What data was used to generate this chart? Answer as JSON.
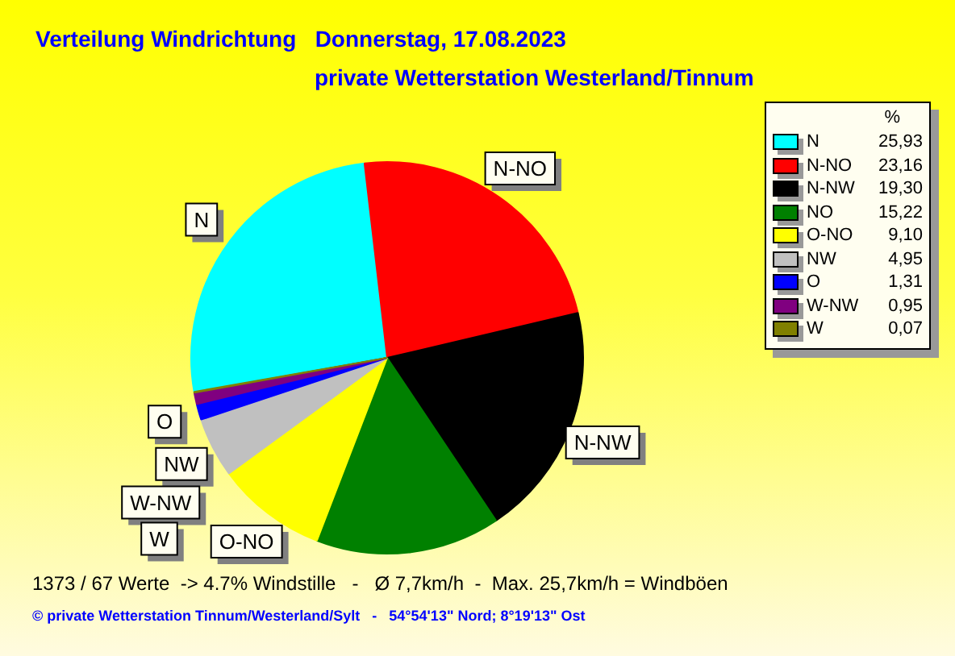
{
  "chart_data": {
    "type": "pie",
    "title": "Verteilung Windrichtung   Donnerstag, 17.08.2023",
    "subtitle": "private Wetterstation Westerland/Tinnum",
    "categories": [
      "N",
      "N-NO",
      "N-NW",
      "NO",
      "O-NO",
      "NW",
      "O",
      "W-NW",
      "W"
    ],
    "values": [
      25.93,
      23.16,
      19.3,
      15.22,
      9.1,
      4.95,
      1.31,
      0.95,
      0.07
    ],
    "value_labels": [
      "25,93",
      "23,16",
      "19,30",
      "15,22",
      "9,10",
      "4,95",
      "1,31",
      "0,95",
      "0,07"
    ],
    "colors": [
      "#00ffff",
      "#ff0000",
      "#000000",
      "#008000",
      "#ffff00",
      "#c0c0c0",
      "#0000ff",
      "#800080",
      "#808000"
    ],
    "legend": "right",
    "legend_title": "%",
    "annotations": [
      "1373 / 67 Werte  -> 4.7% Windstille   -   Ø 7,7km/h  -  Max. 25,7km/h = Windböen",
      "© private Wetterstation Tinnum/Westerland/Sylt   -   54°54'13\" Nord; 8°19'13\" Ost"
    ]
  }
}
